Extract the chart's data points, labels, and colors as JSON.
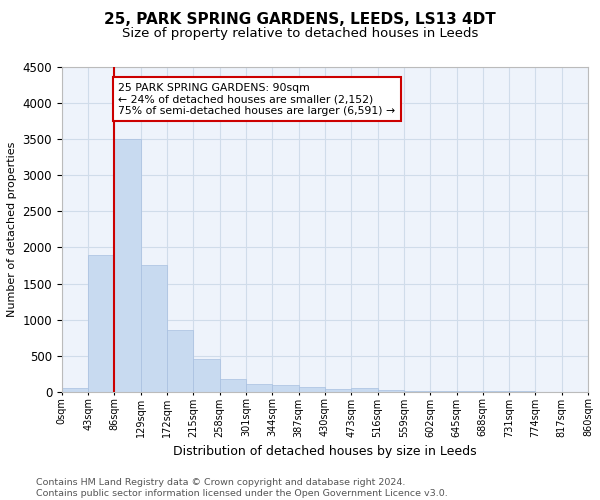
{
  "title": "25, PARK SPRING GARDENS, LEEDS, LS13 4DT",
  "subtitle": "Size of property relative to detached houses in Leeds",
  "xlabel": "Distribution of detached houses by size in Leeds",
  "ylabel": "Number of detached properties",
  "bar_color": "#c8daf0",
  "bar_edge_color": "#a8c0e0",
  "grid_color": "#d0dcea",
  "bg_color": "#eef3fb",
  "property_line_color": "#cc0000",
  "annotation_box_color": "#cc0000",
  "bin_edges": [
    0,
    43,
    86,
    129,
    172,
    215,
    258,
    301,
    344,
    387,
    430,
    473,
    516,
    559,
    602,
    645,
    688,
    731,
    774,
    817,
    860
  ],
  "bin_labels": [
    "0sqm",
    "43sqm",
    "86sqm",
    "129sqm",
    "172sqm",
    "215sqm",
    "258sqm",
    "301sqm",
    "344sqm",
    "387sqm",
    "430sqm",
    "473sqm",
    "516sqm",
    "559sqm",
    "602sqm",
    "645sqm",
    "688sqm",
    "731sqm",
    "774sqm",
    "817sqm",
    "860sqm"
  ],
  "counts": [
    50,
    1900,
    3500,
    1750,
    850,
    450,
    175,
    110,
    90,
    60,
    45,
    50,
    25,
    15,
    10,
    8,
    6,
    5,
    4,
    3
  ],
  "property_bin_index": 2,
  "ylim": [
    0,
    4500
  ],
  "yticks": [
    0,
    500,
    1000,
    1500,
    2000,
    2500,
    3000,
    3500,
    4000,
    4500
  ],
  "annotation_text1": "25 PARK SPRING GARDENS: 90sqm",
  "annotation_text2": "← 24% of detached houses are smaller (2,152)",
  "annotation_text3": "75% of semi-detached houses are larger (6,591) →",
  "footnote1": "Contains HM Land Registry data © Crown copyright and database right 2024.",
  "footnote2": "Contains public sector information licensed under the Open Government Licence v3.0.",
  "title_fontsize": 11,
  "subtitle_fontsize": 9.5,
  "annotation_fontsize": 7.8,
  "footnote_fontsize": 6.8,
  "ylabel_fontsize": 8,
  "xlabel_fontsize": 9
}
